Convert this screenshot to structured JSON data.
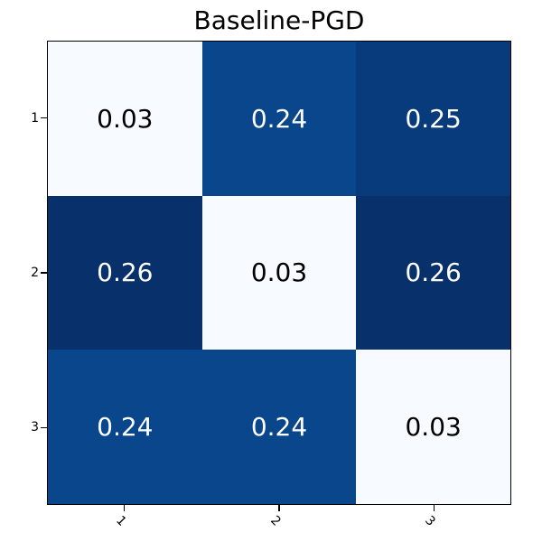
{
  "figure": {
    "background": "#ffffff",
    "text_color": "#000000"
  },
  "chart_data": {
    "type": "heatmap",
    "title": "Baseline-PGD",
    "xlabel": "",
    "ylabel": "",
    "x_tick_labels": [
      "1",
      "2",
      "3"
    ],
    "y_tick_labels": [
      "1",
      "2",
      "3"
    ],
    "x_tick_rotation_deg": 45,
    "values": [
      [
        0.03,
        0.24,
        0.25
      ],
      [
        0.26,
        0.03,
        0.26
      ],
      [
        0.24,
        0.24,
        0.03
      ]
    ],
    "cell_text": [
      [
        "0.03",
        "0.24",
        "0.25"
      ],
      [
        "0.26",
        "0.03",
        "0.26"
      ],
      [
        "0.24",
        "0.24",
        "0.03"
      ]
    ],
    "colormap": "Blues",
    "legend": "none",
    "grid": "off",
    "palette": {
      "0.03": {
        "bg": "#f7fbff",
        "fg": "#000000"
      },
      "0.24": {
        "bg": "#09468b",
        "fg": "#ffffff"
      },
      "0.25": {
        "bg": "#083b7b",
        "fg": "#ffffff"
      },
      "0.26": {
        "bg": "#08306b",
        "fg": "#ffffff"
      }
    }
  }
}
